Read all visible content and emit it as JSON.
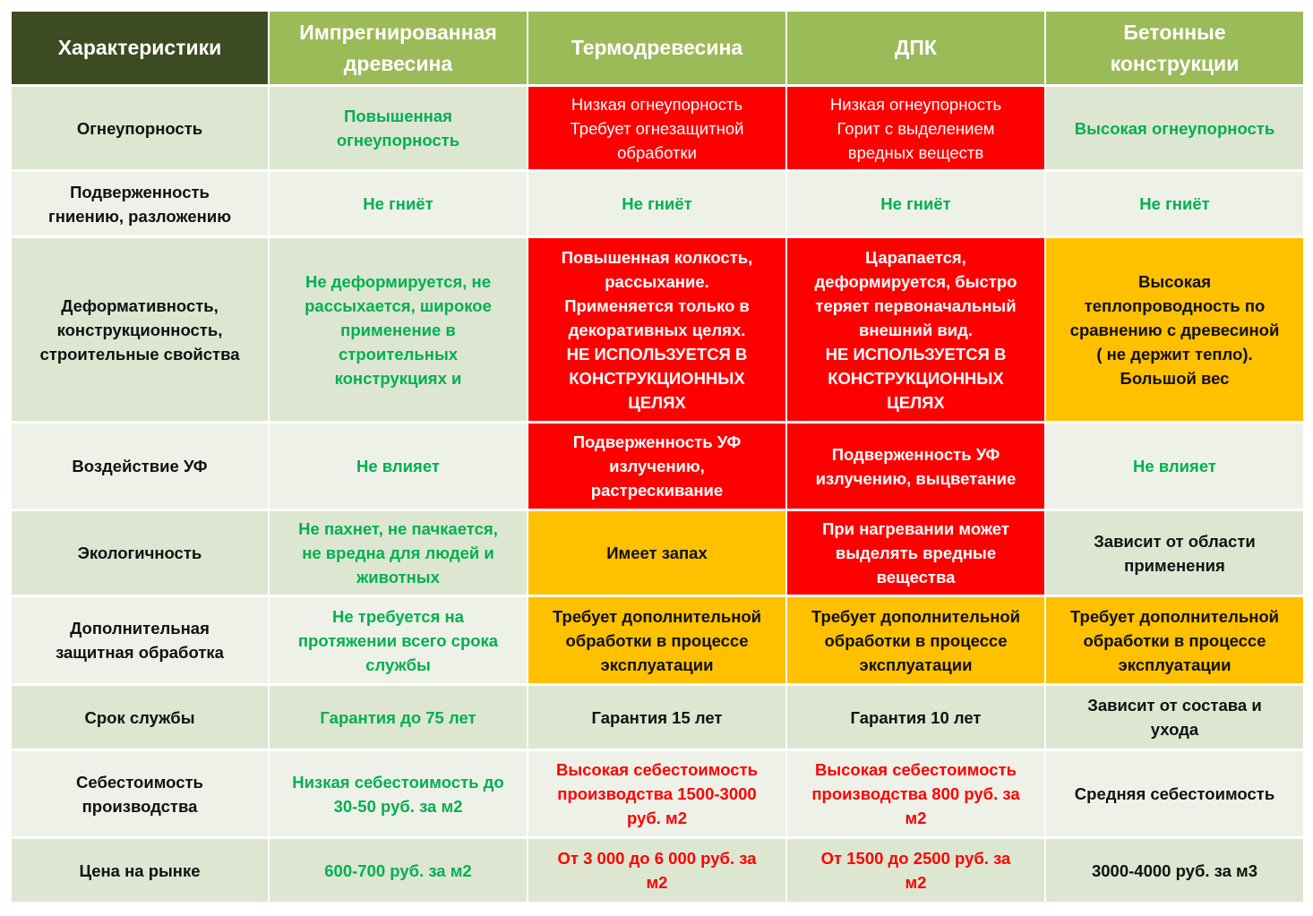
{
  "header": [
    "Характеристики",
    "Импрегнированная\nдревесина",
    "Термодревесина",
    "ДПК",
    "Бетонные\nконструкции"
  ],
  "colors": {
    "header_dark": "#3d4b22",
    "header": "#9bbb59",
    "red": "#ff0000",
    "orange": "#ffc000",
    "green_text": "#00b050"
  },
  "rows": [
    {
      "cells": [
        {
          "text": "Огнеупорность",
          "style": "t-black"
        },
        {
          "text": "Повышенная\nогнеупорность",
          "style": "t-green"
        },
        {
          "text": "Низкая огнеупорность\nТребует огнезащитной\nобработки",
          "style": "bg-red light"
        },
        {
          "text": "Низкая огнеупорность\nГорит с выделением\nвредных веществ",
          "style": "bg-red light"
        },
        {
          "text": "Высокая огнеупорность",
          "style": "t-green"
        }
      ]
    },
    {
      "cells": [
        {
          "text": "Подверженность\nгниению, разложению",
          "style": "t-black"
        },
        {
          "text": "Не гниёт",
          "style": "t-green"
        },
        {
          "text": "Не гниёт",
          "style": "t-green"
        },
        {
          "text": "Не гниёт",
          "style": "t-green"
        },
        {
          "text": "Не гниёт",
          "style": "t-green"
        }
      ]
    },
    {
      "cells": [
        {
          "text": "Деформативность,\nконструкционность,\nстроительные свойства",
          "style": "t-black"
        },
        {
          "text": "Не деформируется, не\nрассыхается, широкое\nприменение в\nстроительных\nконструкциях и",
          "style": "t-green"
        },
        {
          "text": "Повышенная колкость,\nрассыхание.\nПрименяется только в\nдекоративных целях.\nНЕ ИСПОЛЬЗУЕТСЯ В\nКОНСТРУКЦИОННЫХ\nЦЕЛЯХ",
          "style": "bg-red"
        },
        {
          "text": "Царапается,\nдеформируется, быстро\nтеряет первоначальный\nвнешний вид.\nНЕ ИСПОЛЬЗУЕТСЯ В\nКОНСТРУКЦИОННЫХ\nЦЕЛЯХ",
          "style": "bg-red"
        },
        {
          "text": "Высокая\nтеплопроводность по\nсравнению с древесиной\n( не держит тепло).\nБольшой вес",
          "style": "bg-orange"
        }
      ]
    },
    {
      "cells": [
        {
          "text": "Воздействие УФ",
          "style": "t-black"
        },
        {
          "text": "Не влияет",
          "style": "t-green"
        },
        {
          "text": "Подверженность УФ\nизлучению,\nрастрескивание",
          "style": "bg-red"
        },
        {
          "text": "Подверженность УФ\nизлучению, выцветание",
          "style": "bg-red"
        },
        {
          "text": "Не влияет",
          "style": "t-green"
        }
      ]
    },
    {
      "cells": [
        {
          "text": "Экологичность",
          "style": "t-black"
        },
        {
          "text": "Не пахнет, не пачкается,\nне вредна для людей и\nживотных",
          "style": "t-green"
        },
        {
          "text": "Имеет запах",
          "style": "bg-orange"
        },
        {
          "text": "При нагревании может\nвыделять вредные\nвещества",
          "style": "bg-red"
        },
        {
          "text": "Зависит от области\nприменения",
          "style": "t-black"
        }
      ]
    },
    {
      "cells": [
        {
          "text": "Дополнительная\nзащитная обработка",
          "style": "t-black"
        },
        {
          "text": "Не требуется на\nпротяжении всего срока\nслужбы",
          "style": "t-green"
        },
        {
          "text": "Требует дополнительной\nобработки в процессе\nэксплуатации",
          "style": "bg-orange"
        },
        {
          "text": "Требует дополнительной\nобработки в процессе\nэксплуатации",
          "style": "bg-orange"
        },
        {
          "text": "Требует дополнительной\nобработки в процессе\nэксплуатации",
          "style": "bg-orange"
        }
      ]
    },
    {
      "cells": [
        {
          "text": "Срок службы",
          "style": "t-black"
        },
        {
          "text": "Гарантия до 75 лет",
          "style": "t-green"
        },
        {
          "text": "Гарантия 15 лет",
          "style": "t-black"
        },
        {
          "text": "Гарантия 10 лет",
          "style": "t-black"
        },
        {
          "text": "Зависит от состава и\nухода",
          "style": "t-black"
        }
      ]
    },
    {
      "cells": [
        {
          "text": "Себестоимость\nпроизводства",
          "style": "t-black"
        },
        {
          "text": "Низкая себестоимость до\n30-50 руб. за м2",
          "style": "t-green"
        },
        {
          "text": "Высокая себестоимость\nпроизводства 1500-3000\nруб. м2",
          "style": "t-red"
        },
        {
          "text": "Высокая себестоимость\nпроизводства 800 руб. за\nм2",
          "style": "t-red"
        },
        {
          "text": "Средняя себестоимость",
          "style": "t-black"
        }
      ]
    },
    {
      "cells": [
        {
          "text": "Цена на рынке",
          "style": "t-black"
        },
        {
          "text": "600-700 руб. за м2",
          "style": "t-green"
        },
        {
          "text": "От 3 000 до 6 000 руб. за\nм2",
          "style": "t-red"
        },
        {
          "text": "От 1500 до 2500 руб. за\nм2",
          "style": "t-red"
        },
        {
          "text": "3000-4000 руб. за м3",
          "style": "t-black"
        }
      ]
    }
  ]
}
